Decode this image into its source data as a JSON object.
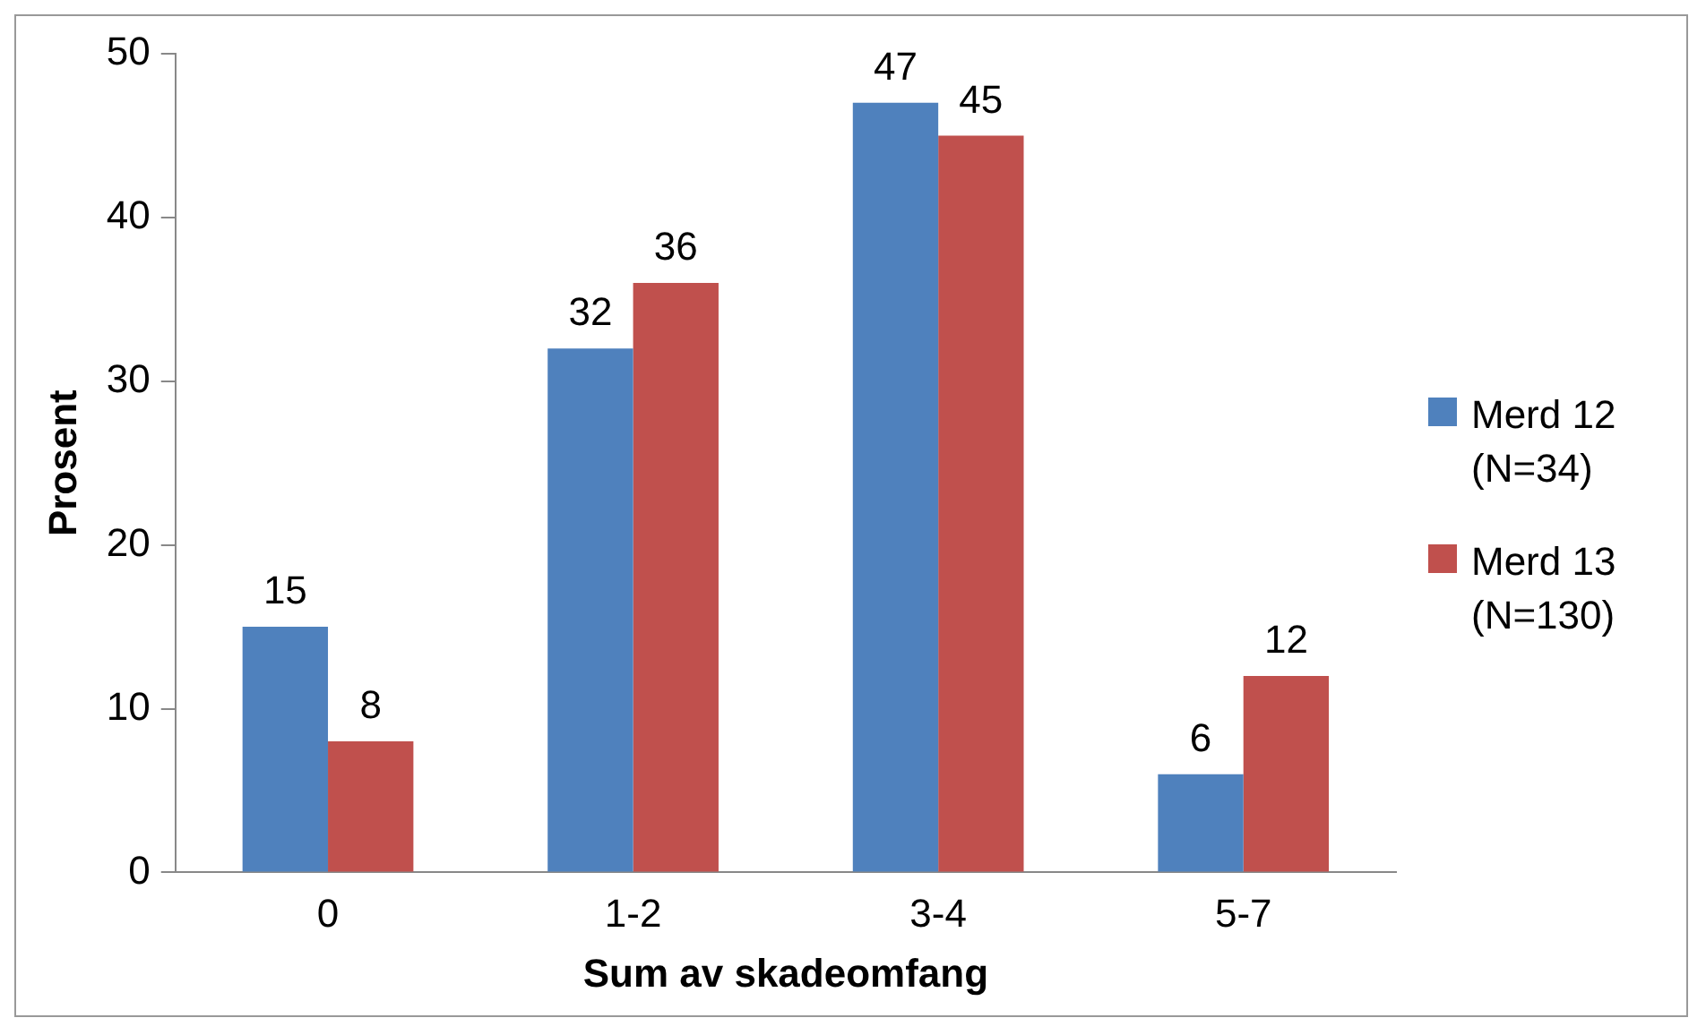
{
  "chart_data": {
    "type": "bar",
    "xlabel": "Sum av skadeomfang",
    "ylabel": "Prosent",
    "categories": [
      "0",
      "1-2",
      "3-4",
      "5-7"
    ],
    "series": [
      {
        "name": "Merd 12 (N=34)",
        "color": "#4f81bd",
        "values": [
          15,
          32,
          47,
          6
        ]
      },
      {
        "name": "Merd 13 (N=130)",
        "color": "#c0504d",
        "values": [
          8,
          36,
          45,
          12
        ]
      }
    ],
    "ylim": [
      0,
      50
    ],
    "yticks": [
      0,
      10,
      20,
      30,
      40,
      50
    ],
    "grid": false,
    "legend": "right",
    "data_labels": true
  }
}
